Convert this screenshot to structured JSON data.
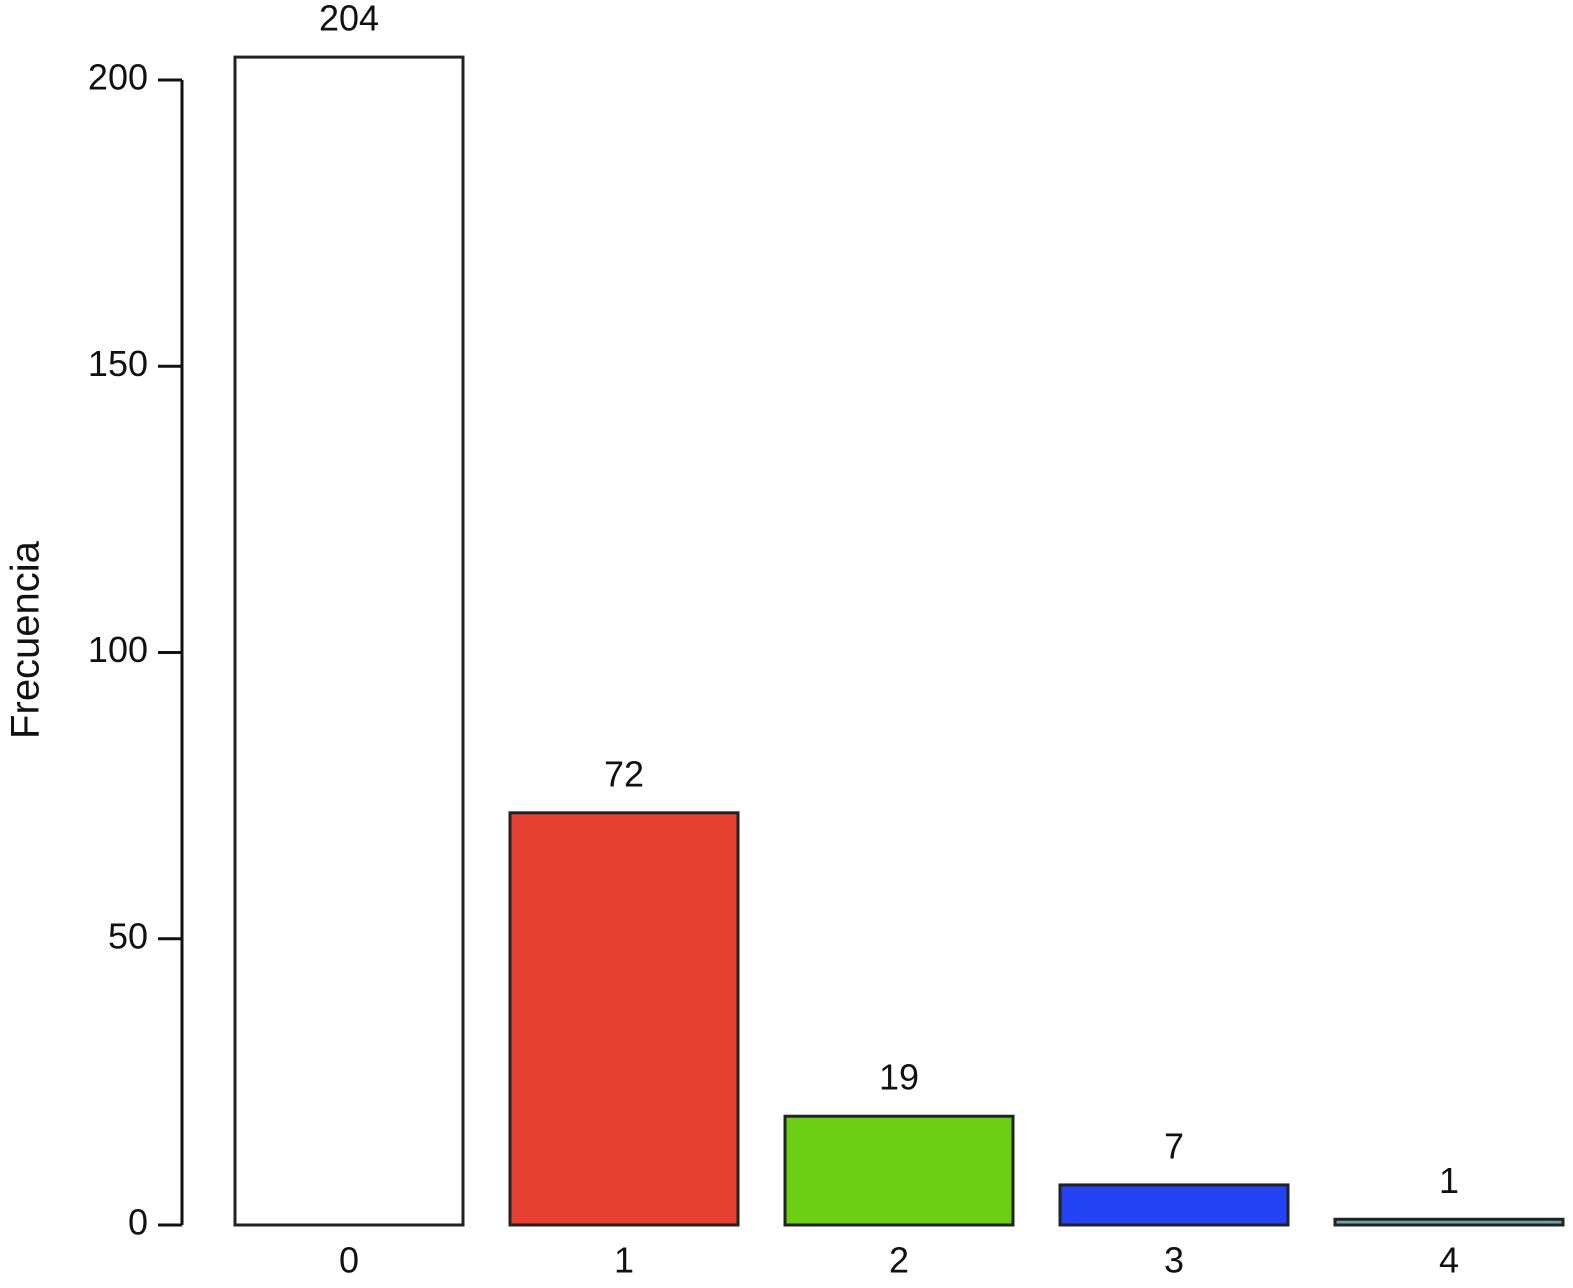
{
  "chart_data": {
    "type": "bar",
    "y_label": "Frecuencia",
    "categories": [
      "0",
      "1",
      "2",
      "3",
      "4"
    ],
    "values": [
      204,
      72,
      19,
      7,
      1
    ],
    "colors": [
      "#ffffff",
      "#e84033",
      "#6ccf14",
      "#2244f5",
      "#6aa8a8"
    ],
    "ylim": [
      0,
      200
    ],
    "yticks": [
      0,
      50,
      100,
      150,
      200
    ],
    "grid": false
  }
}
